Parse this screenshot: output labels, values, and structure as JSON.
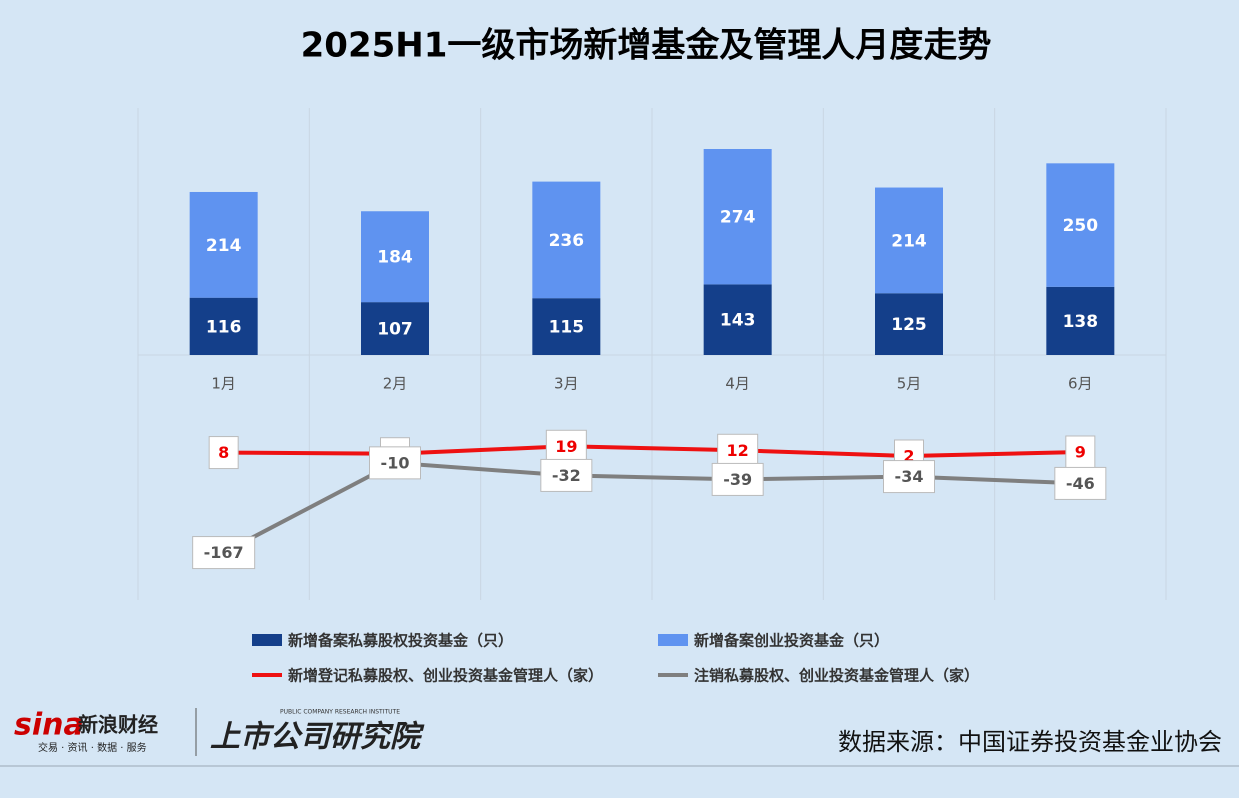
{
  "chart_data": {
    "type": "combo",
    "title": "2025H1一级市场新增基金及管理人月度走势",
    "categories": [
      "1月",
      "2月",
      "3月",
      "4月",
      "5月",
      "6月"
    ],
    "series": [
      {
        "name": "新增备案私募股权投资基金（只）",
        "color": "#143f8a",
        "type": "bar",
        "values": [
          116,
          107,
          115,
          143,
          125,
          138
        ]
      },
      {
        "name": "新增备案创业投资基金（只）",
        "color": "#5f93f0",
        "type": "bar",
        "values": [
          214,
          184,
          236,
          274,
          214,
          250
        ]
      },
      {
        "name": "新增登记私募股权、创业投资基金管理人（家）",
        "color": "#ee1111",
        "type": "line",
        "axis": "y2",
        "values": [
          8,
          6,
          19,
          12,
          2,
          9
        ]
      },
      {
        "name": "注销私募股权、创业投资基金管理人（家）",
        "color": "#7f7f7f",
        "type": "line",
        "axis": "y2",
        "values": [
          -167,
          -10,
          -32,
          -39,
          -34,
          -46
        ]
      }
    ],
    "ylim": [
      0,
      500
    ],
    "y2lim": [
      -250,
      100
    ],
    "grid": true
  },
  "footer": {
    "brand": "sina",
    "brand_name": "新浪财经",
    "brand_slogan": "交易 · 资讯 · 数据 · 服务",
    "institute_en": "PUBLIC COMPANY RESEARCH INSTITUTE",
    "institute": "上市公司研究院",
    "source": "数据来源：中国证券投资基金业协会"
  }
}
